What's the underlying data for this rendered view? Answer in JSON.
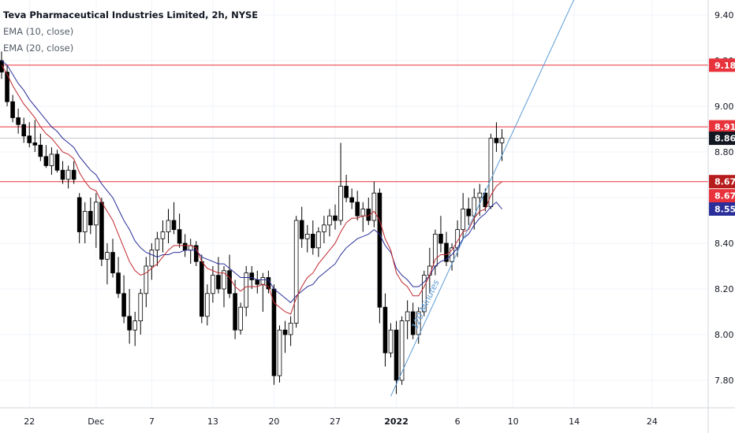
{
  "legend": {
    "title": "Teva Pharmaceutical Industries Limited, 2h, NYSE",
    "ema10": "EMA (10, close)",
    "ema20": "EMA (20, close)"
  },
  "colors": {
    "ema10": "#c0272d",
    "ema20": "#2a2e9a",
    "hline": "#e8323c",
    "trend": "#5b9bd5",
    "candle": "#000000",
    "grid": "#f0f3fa"
  },
  "chart_data": {
    "type": "candlestick",
    "y_axis": {
      "ticks": [
        "9.40",
        "9.20",
        "9.00",
        "8.80",
        "8.60",
        "8.40",
        "8.20",
        "8.00",
        "7.80"
      ],
      "range": [
        7.7,
        9.47
      ]
    },
    "x_axis": {
      "ticks": [
        "22",
        "Dec",
        "7",
        "13",
        "20",
        "27",
        "2022",
        "6",
        "10",
        "14",
        "24"
      ]
    },
    "x_tick_index": {
      "22": 5,
      "Dec": 17,
      "7": 27,
      "13": 38,
      "20": 49,
      "27": 60,
      "2022": 71,
      "6": 82,
      "10": 92,
      "14": 103,
      "24": 117
    },
    "horizontal_levels": [
      9.18,
      8.91,
      8.67
    ],
    "price_badges": [
      {
        "label": "9.18",
        "color": "#e8323c"
      },
      {
        "label": "8.91",
        "color": "#e8323c"
      },
      {
        "label": "8.86",
        "color": "#131722"
      },
      {
        "label": "8.67",
        "color": "#b71c1c"
      },
      {
        "label": "8.67",
        "color": "#e8323c"
      },
      {
        "label": "8.55",
        "color": "#2a2e9a"
      }
    ],
    "trendline": {
      "label": "120 Minutes",
      "from": {
        "index": 70,
        "price": 7.73
      },
      "to": {
        "index": 103,
        "price": 9.47
      }
    },
    "candles": [
      {
        "o": 9.2,
        "h": 9.24,
        "l": 9.12,
        "c": 9.15
      },
      {
        "o": 9.15,
        "h": 9.18,
        "l": 9.0,
        "c": 9.02
      },
      {
        "o": 9.02,
        "h": 9.05,
        "l": 8.93,
        "c": 8.95
      },
      {
        "o": 8.95,
        "h": 8.99,
        "l": 8.88,
        "c": 8.92
      },
      {
        "o": 8.92,
        "h": 8.95,
        "l": 8.84,
        "c": 8.87
      },
      {
        "o": 8.87,
        "h": 8.93,
        "l": 8.82,
        "c": 8.84
      },
      {
        "o": 8.84,
        "h": 8.94,
        "l": 8.8,
        "c": 8.83
      },
      {
        "o": 8.83,
        "h": 8.88,
        "l": 8.76,
        "c": 8.78
      },
      {
        "o": 8.78,
        "h": 8.83,
        "l": 8.73,
        "c": 8.74
      },
      {
        "o": 8.74,
        "h": 8.82,
        "l": 8.7,
        "c": 8.79
      },
      {
        "o": 8.79,
        "h": 8.81,
        "l": 8.71,
        "c": 8.72
      },
      {
        "o": 8.72,
        "h": 8.76,
        "l": 8.66,
        "c": 8.68
      },
      {
        "o": 8.68,
        "h": 8.74,
        "l": 8.64,
        "c": 8.72
      },
      {
        "o": 8.72,
        "h": 8.76,
        "l": 8.66,
        "c": 8.68
      },
      {
        "o": 8.6,
        "h": 8.62,
        "l": 8.4,
        "c": 8.45
      },
      {
        "o": 8.45,
        "h": 8.58,
        "l": 8.4,
        "c": 8.54
      },
      {
        "o": 8.54,
        "h": 8.6,
        "l": 8.44,
        "c": 8.48
      },
      {
        "o": 8.48,
        "h": 8.62,
        "l": 8.38,
        "c": 8.58
      },
      {
        "o": 8.58,
        "h": 8.6,
        "l": 8.3,
        "c": 8.33
      },
      {
        "o": 8.33,
        "h": 8.4,
        "l": 8.22,
        "c": 8.36
      },
      {
        "o": 8.36,
        "h": 8.42,
        "l": 8.25,
        "c": 8.27
      },
      {
        "o": 8.27,
        "h": 8.34,
        "l": 8.16,
        "c": 8.18
      },
      {
        "o": 8.18,
        "h": 8.26,
        "l": 8.05,
        "c": 8.08
      },
      {
        "o": 8.08,
        "h": 8.2,
        "l": 7.96,
        "c": 8.02
      },
      {
        "o": 8.02,
        "h": 8.1,
        "l": 7.95,
        "c": 8.06
      },
      {
        "o": 8.06,
        "h": 8.2,
        "l": 8.0,
        "c": 8.18
      },
      {
        "o": 8.18,
        "h": 8.34,
        "l": 8.12,
        "c": 8.3
      },
      {
        "o": 8.3,
        "h": 8.4,
        "l": 8.24,
        "c": 8.37
      },
      {
        "o": 8.37,
        "h": 8.45,
        "l": 8.3,
        "c": 8.42
      },
      {
        "o": 8.42,
        "h": 8.5,
        "l": 8.36,
        "c": 8.45
      },
      {
        "o": 8.45,
        "h": 8.55,
        "l": 8.4,
        "c": 8.5
      },
      {
        "o": 8.5,
        "h": 8.58,
        "l": 8.44,
        "c": 8.46
      },
      {
        "o": 8.46,
        "h": 8.53,
        "l": 8.38,
        "c": 8.4
      },
      {
        "o": 8.4,
        "h": 8.44,
        "l": 8.34,
        "c": 8.37
      },
      {
        "o": 8.37,
        "h": 8.42,
        "l": 8.31,
        "c": 8.39
      },
      {
        "o": 8.39,
        "h": 8.41,
        "l": 8.3,
        "c": 8.32
      },
      {
        "o": 8.32,
        "h": 8.35,
        "l": 8.05,
        "c": 8.08
      },
      {
        "o": 8.08,
        "h": 8.22,
        "l": 8.04,
        "c": 8.18
      },
      {
        "o": 8.18,
        "h": 8.3,
        "l": 8.14,
        "c": 8.26
      },
      {
        "o": 8.26,
        "h": 8.34,
        "l": 8.18,
        "c": 8.2
      },
      {
        "o": 8.2,
        "h": 8.3,
        "l": 8.12,
        "c": 8.28
      },
      {
        "o": 8.28,
        "h": 8.35,
        "l": 8.16,
        "c": 8.18
      },
      {
        "o": 8.18,
        "h": 8.24,
        "l": 7.98,
        "c": 8.02
      },
      {
        "o": 8.02,
        "h": 8.14,
        "l": 8.0,
        "c": 8.12
      },
      {
        "o": 8.12,
        "h": 8.3,
        "l": 8.08,
        "c": 8.27
      },
      {
        "o": 8.27,
        "h": 8.3,
        "l": 8.2,
        "c": 8.24
      },
      {
        "o": 8.24,
        "h": 8.28,
        "l": 8.18,
        "c": 8.22
      },
      {
        "o": 8.22,
        "h": 8.27,
        "l": 8.1,
        "c": 8.25
      },
      {
        "o": 8.25,
        "h": 8.28,
        "l": 8.18,
        "c": 8.2
      },
      {
        "o": 8.2,
        "h": 8.22,
        "l": 7.78,
        "c": 7.82
      },
      {
        "o": 7.82,
        "h": 8.04,
        "l": 7.79,
        "c": 8.02
      },
      {
        "o": 8.02,
        "h": 8.06,
        "l": 7.92,
        "c": 8.0
      },
      {
        "o": 8.0,
        "h": 8.08,
        "l": 7.95,
        "c": 8.05
      },
      {
        "o": 8.05,
        "h": 8.52,
        "l": 8.03,
        "c": 8.5
      },
      {
        "o": 8.5,
        "h": 8.56,
        "l": 8.38,
        "c": 8.42
      },
      {
        "o": 8.42,
        "h": 8.48,
        "l": 8.36,
        "c": 8.44
      },
      {
        "o": 8.44,
        "h": 8.5,
        "l": 8.35,
        "c": 8.38
      },
      {
        "o": 8.38,
        "h": 8.47,
        "l": 8.34,
        "c": 8.45
      },
      {
        "o": 8.45,
        "h": 8.52,
        "l": 8.4,
        "c": 8.48
      },
      {
        "o": 8.48,
        "h": 8.55,
        "l": 8.43,
        "c": 8.52
      },
      {
        "o": 8.52,
        "h": 8.57,
        "l": 8.46,
        "c": 8.5
      },
      {
        "o": 8.5,
        "h": 8.84,
        "l": 8.48,
        "c": 8.65
      },
      {
        "o": 8.65,
        "h": 8.7,
        "l": 8.58,
        "c": 8.6
      },
      {
        "o": 8.6,
        "h": 8.64,
        "l": 8.55,
        "c": 8.58
      },
      {
        "o": 8.58,
        "h": 8.63,
        "l": 8.5,
        "c": 8.52
      },
      {
        "o": 8.52,
        "h": 8.58,
        "l": 8.45,
        "c": 8.55
      },
      {
        "o": 8.55,
        "h": 8.6,
        "l": 8.48,
        "c": 8.5
      },
      {
        "o": 8.5,
        "h": 8.67,
        "l": 8.47,
        "c": 8.62
      },
      {
        "o": 8.62,
        "h": 8.64,
        "l": 8.05,
        "c": 8.12
      },
      {
        "o": 8.12,
        "h": 8.18,
        "l": 7.86,
        "c": 7.92
      },
      {
        "o": 7.92,
        "h": 8.05,
        "l": 7.9,
        "c": 8.02
      },
      {
        "o": 8.02,
        "h": 8.06,
        "l": 7.74,
        "c": 7.8
      },
      {
        "o": 7.8,
        "h": 8.08,
        "l": 7.78,
        "c": 8.06
      },
      {
        "o": 8.06,
        "h": 8.15,
        "l": 7.98,
        "c": 8.1
      },
      {
        "o": 8.1,
        "h": 8.14,
        "l": 7.98,
        "c": 8.0
      },
      {
        "o": 8.0,
        "h": 8.12,
        "l": 7.96,
        "c": 8.1
      },
      {
        "o": 8.1,
        "h": 8.28,
        "l": 8.08,
        "c": 8.26
      },
      {
        "o": 8.26,
        "h": 8.38,
        "l": 8.18,
        "c": 8.3
      },
      {
        "o": 8.3,
        "h": 8.46,
        "l": 8.26,
        "c": 8.44
      },
      {
        "o": 8.44,
        "h": 8.52,
        "l": 8.36,
        "c": 8.4
      },
      {
        "o": 8.4,
        "h": 8.45,
        "l": 8.3,
        "c": 8.32
      },
      {
        "o": 8.32,
        "h": 8.4,
        "l": 8.28,
        "c": 8.38
      },
      {
        "o": 8.38,
        "h": 8.5,
        "l": 8.34,
        "c": 8.46
      },
      {
        "o": 8.46,
        "h": 8.62,
        "l": 8.42,
        "c": 8.55
      },
      {
        "o": 8.55,
        "h": 8.6,
        "l": 8.48,
        "c": 8.52
      },
      {
        "o": 8.52,
        "h": 8.64,
        "l": 8.46,
        "c": 8.6
      },
      {
        "o": 8.6,
        "h": 8.66,
        "l": 8.52,
        "c": 8.62
      },
      {
        "o": 8.62,
        "h": 8.64,
        "l": 8.54,
        "c": 8.56
      },
      {
        "o": 8.56,
        "h": 8.88,
        "l": 8.55,
        "c": 8.86
      },
      {
        "o": 8.86,
        "h": 8.93,
        "l": 8.8,
        "c": 8.84
      },
      {
        "o": 8.84,
        "h": 8.9,
        "l": 8.76,
        "c": 8.86
      }
    ],
    "ema10": [
      9.18,
      9.14,
      9.09,
      9.05,
      9.01,
      8.98,
      8.95,
      8.91,
      8.88,
      8.86,
      8.83,
      8.8,
      8.79,
      8.77,
      8.71,
      8.67,
      8.64,
      8.63,
      8.58,
      8.54,
      8.5,
      8.44,
      8.38,
      8.32,
      8.28,
      8.26,
      8.27,
      8.29,
      8.31,
      8.34,
      8.37,
      8.39,
      8.39,
      8.39,
      8.39,
      8.38,
      8.32,
      8.29,
      8.28,
      8.27,
      8.27,
      8.25,
      8.21,
      8.19,
      8.21,
      8.21,
      8.21,
      8.22,
      8.21,
      8.14,
      8.12,
      8.1,
      8.09,
      8.16,
      8.21,
      8.25,
      8.27,
      8.31,
      8.34,
      8.37,
      8.4,
      8.45,
      8.49,
      8.51,
      8.51,
      8.52,
      8.52,
      8.54,
      8.5,
      8.42,
      8.37,
      8.27,
      8.23,
      8.21,
      8.17,
      8.17,
      8.21,
      8.26,
      8.33,
      8.35,
      8.35,
      8.37,
      8.41,
      8.45,
      8.46,
      8.51,
      8.54,
      8.55,
      8.61,
      8.65,
      8.67
    ],
    "ema20": [
      9.2,
      9.18,
      9.14,
      9.1,
      9.07,
      9.03,
      9.0,
      8.97,
      8.94,
      8.91,
      8.89,
      8.86,
      8.84,
      8.82,
      8.78,
      8.75,
      8.72,
      8.7,
      8.66,
      8.63,
      8.6,
      8.55,
      8.5,
      8.46,
      8.41,
      8.38,
      8.36,
      8.35,
      8.34,
      8.35,
      8.35,
      8.36,
      8.36,
      8.37,
      8.37,
      8.37,
      8.34,
      8.33,
      8.32,
      8.31,
      8.31,
      8.29,
      8.27,
      8.25,
      8.25,
      8.25,
      8.24,
      8.24,
      8.24,
      8.2,
      8.18,
      8.16,
      8.14,
      8.17,
      8.19,
      8.21,
      8.22,
      8.25,
      8.27,
      8.29,
      8.31,
      8.35,
      8.38,
      8.4,
      8.42,
      8.43,
      8.44,
      8.46,
      8.44,
      8.39,
      8.36,
      8.29,
      8.26,
      8.24,
      8.21,
      8.21,
      8.23,
      8.26,
      8.3,
      8.32,
      8.33,
      8.35,
      8.38,
      8.42,
      8.44,
      8.48,
      8.51,
      8.53,
      8.56,
      8.58,
      8.55
    ]
  }
}
